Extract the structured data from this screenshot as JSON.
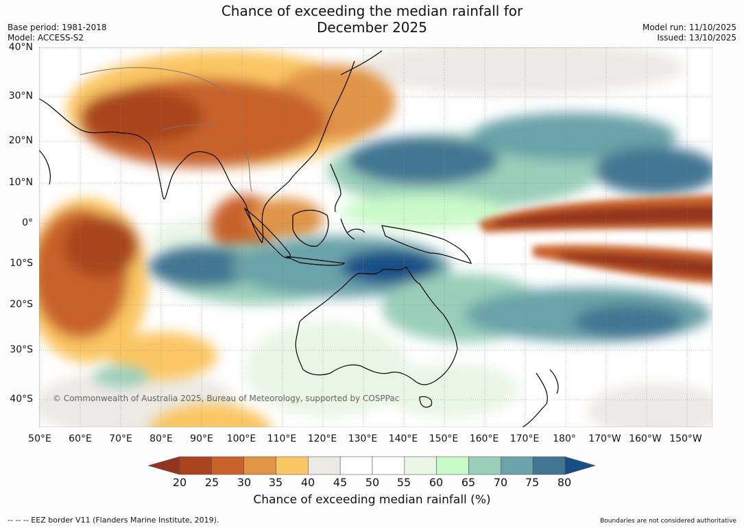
{
  "title_line1": "Chance of exceeding the median rainfall for",
  "title_line2": "December 2025",
  "base_period": "Base period: 1981-2018",
  "model": "Model: ACCESS-S2",
  "model_run": "Model run: 11/10/2025",
  "issued": "Issued: 13/10/2025",
  "lat_labels": [
    "40°N",
    "30°N",
    "20°N",
    "10°N",
    "0°",
    "10°S",
    "20°S",
    "30°S",
    "40°S"
  ],
  "lon_labels": [
    "50°E",
    "60°E",
    "70°E",
    "80°E",
    "90°E",
    "100°E",
    "110°E",
    "120°E",
    "130°E",
    "140°E",
    "150°E",
    "160°E",
    "170°E",
    "180°",
    "170°W",
    "160°W",
    "150°W"
  ],
  "copyright": "© Commonwealth of Australia 2025, Bureau of Meteorology, supported by COSPPac",
  "colorbar": {
    "label": "Chance of exceeding median rainfall (%)",
    "ticks": [
      "20",
      "25",
      "30",
      "35",
      "40",
      "45",
      "50",
      "55",
      "60",
      "65",
      "70",
      "75",
      "80"
    ],
    "colors": [
      "#a9441f",
      "#c8622b",
      "#e09446",
      "#fbc664",
      "#eceae4",
      "#ffffff",
      "#ffffff",
      "#e9f6e6",
      "#c9fbc8",
      "#99cfba",
      "#6aa3a9",
      "#427692"
    ],
    "under_color": "#94341f",
    "over_color": "#154f86"
  },
  "footer_left": "--  --  -- EEZ border V11 (Flanders Marine Institute, 2019).",
  "footer_right": "Boundaries are not considered authoritative"
}
